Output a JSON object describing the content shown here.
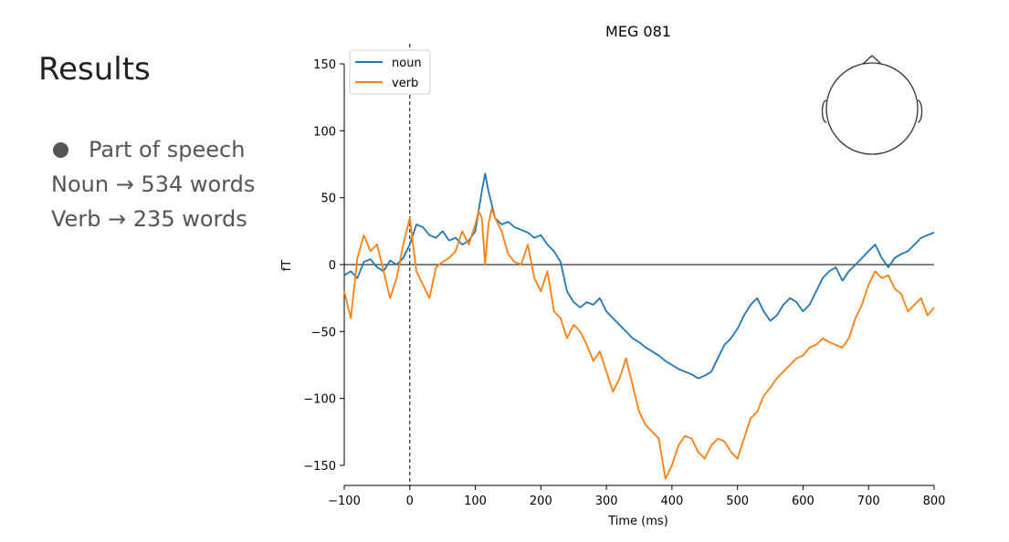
{
  "slide": {
    "title": "Results",
    "bullet": "Part of speech",
    "lines": [
      "Noun → 534 words",
      "Verb → 235 words"
    ]
  },
  "chart_data": {
    "type": "line",
    "title": "MEG 081",
    "xlabel": "Time (ms)",
    "ylabel": "fT",
    "xlim": [
      -100,
      800
    ],
    "ylim": [
      -165,
      165
    ],
    "xticks": [
      -100,
      0,
      100,
      200,
      300,
      400,
      500,
      600,
      700,
      800
    ],
    "yticks": [
      -150,
      -100,
      -50,
      0,
      50,
      100,
      150
    ],
    "xtick_labels": [
      "−100",
      "0",
      "100",
      "200",
      "300",
      "400",
      "500",
      "600",
      "700",
      "800"
    ],
    "ytick_labels": [
      "−150",
      "−100",
      "−50",
      "0",
      "50",
      "100",
      "150"
    ],
    "legend_position": "top-left",
    "reference_lines": {
      "horizontal_y": 0,
      "vertical_dashed_x": 0
    },
    "inset": "sensor-head-outline-top-right",
    "series": [
      {
        "name": "noun",
        "color": "#1f77b4",
        "x": [
          -100,
          -90,
          -80,
          -70,
          -60,
          -50,
          -40,
          -30,
          -20,
          -10,
          0,
          10,
          20,
          30,
          40,
          50,
          60,
          70,
          80,
          90,
          100,
          105,
          110,
          115,
          120,
          125,
          130,
          140,
          150,
          160,
          170,
          180,
          190,
          200,
          210,
          220,
          230,
          240,
          250,
          260,
          270,
          280,
          290,
          300,
          310,
          320,
          330,
          340,
          350,
          360,
          370,
          380,
          390,
          400,
          410,
          420,
          430,
          440,
          450,
          460,
          470,
          480,
          490,
          500,
          510,
          520,
          530,
          540,
          550,
          560,
          570,
          580,
          590,
          600,
          610,
          620,
          630,
          640,
          650,
          660,
          670,
          680,
          690,
          700,
          710,
          720,
          730,
          740,
          750,
          760,
          770,
          780,
          790,
          800
        ],
        "y": [
          -8,
          -5,
          -10,
          2,
          4,
          -2,
          -5,
          3,
          0,
          5,
          15,
          30,
          28,
          22,
          20,
          25,
          18,
          20,
          15,
          18,
          25,
          40,
          55,
          68,
          55,
          45,
          35,
          30,
          32,
          28,
          26,
          24,
          20,
          22,
          15,
          10,
          2,
          -20,
          -28,
          -32,
          -28,
          -30,
          -25,
          -35,
          -40,
          -45,
          -50,
          -55,
          -58,
          -62,
          -65,
          -68,
          -72,
          -75,
          -78,
          -80,
          -82,
          -85,
          -83,
          -80,
          -70,
          -60,
          -55,
          -48,
          -38,
          -30,
          -25,
          -35,
          -42,
          -38,
          -30,
          -25,
          -28,
          -35,
          -30,
          -20,
          -10,
          -5,
          -2,
          -12,
          -5,
          0,
          5,
          10,
          15,
          5,
          -2,
          5,
          8,
          10,
          15,
          20,
          22,
          24
        ]
      },
      {
        "name": "verb",
        "color": "#ff7f0e",
        "x": [
          -100,
          -90,
          -80,
          -70,
          -60,
          -50,
          -40,
          -30,
          -20,
          -10,
          0,
          10,
          20,
          30,
          40,
          50,
          60,
          70,
          80,
          90,
          100,
          105,
          110,
          115,
          120,
          125,
          130,
          140,
          150,
          160,
          170,
          180,
          190,
          200,
          210,
          220,
          230,
          240,
          250,
          260,
          270,
          280,
          290,
          300,
          310,
          320,
          330,
          340,
          350,
          360,
          370,
          380,
          390,
          400,
          410,
          420,
          430,
          440,
          450,
          460,
          470,
          480,
          490,
          500,
          510,
          520,
          530,
          540,
          550,
          560,
          570,
          580,
          590,
          600,
          610,
          620,
          630,
          640,
          650,
          660,
          670,
          680,
          690,
          700,
          710,
          720,
          730,
          740,
          750,
          760,
          770,
          780,
          790,
          800
        ],
        "y": [
          -20,
          -40,
          5,
          22,
          10,
          15,
          -5,
          -25,
          -10,
          15,
          35,
          -5,
          -15,
          -25,
          -2,
          2,
          5,
          10,
          25,
          15,
          30,
          40,
          35,
          0,
          30,
          42,
          35,
          25,
          8,
          2,
          0,
          15,
          -10,
          -20,
          -5,
          -35,
          -40,
          -55,
          -45,
          -50,
          -60,
          -72,
          -65,
          -80,
          -95,
          -85,
          -70,
          -90,
          -110,
          -120,
          -125,
          -130,
          -160,
          -150,
          -135,
          -128,
          -130,
          -140,
          -145,
          -135,
          -130,
          -132,
          -140,
          -145,
          -130,
          -115,
          -110,
          -98,
          -92,
          -85,
          -80,
          -75,
          -70,
          -68,
          -62,
          -60,
          -55,
          -58,
          -60,
          -62,
          -55,
          -40,
          -30,
          -15,
          -5,
          -10,
          -8,
          -18,
          -22,
          -35,
          -30,
          -25,
          -38,
          -32
        ]
      }
    ]
  }
}
